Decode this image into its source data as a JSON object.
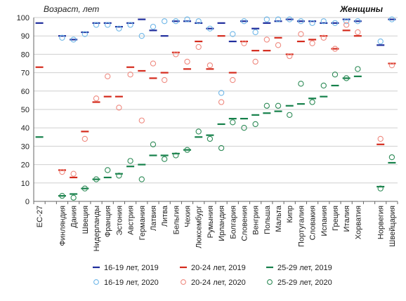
{
  "chart_data": {
    "type": "scatter",
    "title": "Женщины",
    "ylabel": "Возраст, лет",
    "xlabel": "",
    "ylim": [
      0,
      100
    ],
    "yticks": [
      0,
      10,
      20,
      30,
      40,
      50,
      60,
      70,
      80,
      90,
      100
    ],
    "grid": true,
    "legend_position": "bottom",
    "categories": [
      "ЕС-27",
      "",
      "Финляндия",
      "Дания",
      "Швеция",
      "Нидерланды",
      "Франция",
      "Эстония",
      "Австрия",
      "Германия",
      "Латвия",
      "Литва",
      "Бельгия",
      "Чехия",
      "Люксембург",
      "Румыния",
      "Ирландия",
      "Болгария",
      "Словения",
      "Венгрия",
      "Польша",
      "Мальта",
      "Кипр",
      "Португалия",
      "Словакия",
      "Испания",
      "Греция",
      "Италия",
      "Хорватия",
      "",
      "Норвегия",
      "Швейцария"
    ],
    "series": [
      {
        "name": "16-19 лет, 2019",
        "marker": "dash",
        "color": "#1f2d9c",
        "values": [
          97,
          null,
          90,
          88,
          92,
          97,
          97,
          95,
          97,
          99,
          93,
          90,
          98,
          98,
          97,
          94,
          97,
          87,
          98,
          94,
          97,
          98,
          99,
          98,
          98,
          97,
          97,
          99,
          98,
          null,
          85,
          99
        ]
      },
      {
        "name": "20-24 лет, 2019",
        "marker": "dash",
        "color": "#d42a1c",
        "values": [
          73,
          null,
          17,
          13,
          38,
          54,
          57,
          57,
          73,
          71,
          67,
          70,
          81,
          72,
          87,
          72,
          90,
          70,
          87,
          82,
          82,
          89,
          80,
          87,
          88,
          90,
          83,
          93,
          90,
          null,
          31,
          75
        ]
      },
      {
        "name": "25-29 лет, 2019",
        "marker": "dash",
        "color": "#15804a",
        "values": [
          35,
          null,
          3,
          4,
          7,
          12,
          13,
          15,
          19,
          20,
          25,
          25,
          26,
          28,
          35,
          36,
          42,
          45,
          45,
          47,
          48,
          49,
          52,
          53,
          56,
          57,
          63,
          67,
          68,
          null,
          8,
          21
        ]
      },
      {
        "name": "16-19 лет, 2020",
        "marker": "circle",
        "color": "#6fb7e8",
        "values": [
          null,
          null,
          89,
          88,
          91,
          96,
          96,
          94,
          96,
          90,
          95,
          98,
          98,
          99,
          98,
          94,
          59,
          91,
          98,
          92,
          99,
          99,
          99,
          98,
          97,
          98,
          97,
          98,
          98,
          null,
          87,
          99
        ]
      },
      {
        "name": "20-24 лет, 2020",
        "marker": "circle",
        "color": "#ef8a80",
        "values": [
          null,
          null,
          16,
          15,
          34,
          56,
          68,
          51,
          69,
          44,
          75,
          66,
          80,
          76,
          84,
          74,
          54,
          66,
          86,
          76,
          88,
          85,
          79,
          91,
          86,
          89,
          83,
          96,
          92,
          null,
          34,
          74
        ]
      },
      {
        "name": "25-29 лет, 2020",
        "marker": "circle",
        "color": "#2e8b57",
        "values": [
          null,
          null,
          3,
          2,
          7,
          12,
          17,
          14,
          22,
          12,
          31,
          23,
          25,
          28,
          38,
          34,
          29,
          43,
          40,
          42,
          52,
          52,
          47,
          64,
          54,
          63,
          69,
          67,
          72,
          null,
          7,
          24
        ]
      }
    ]
  }
}
